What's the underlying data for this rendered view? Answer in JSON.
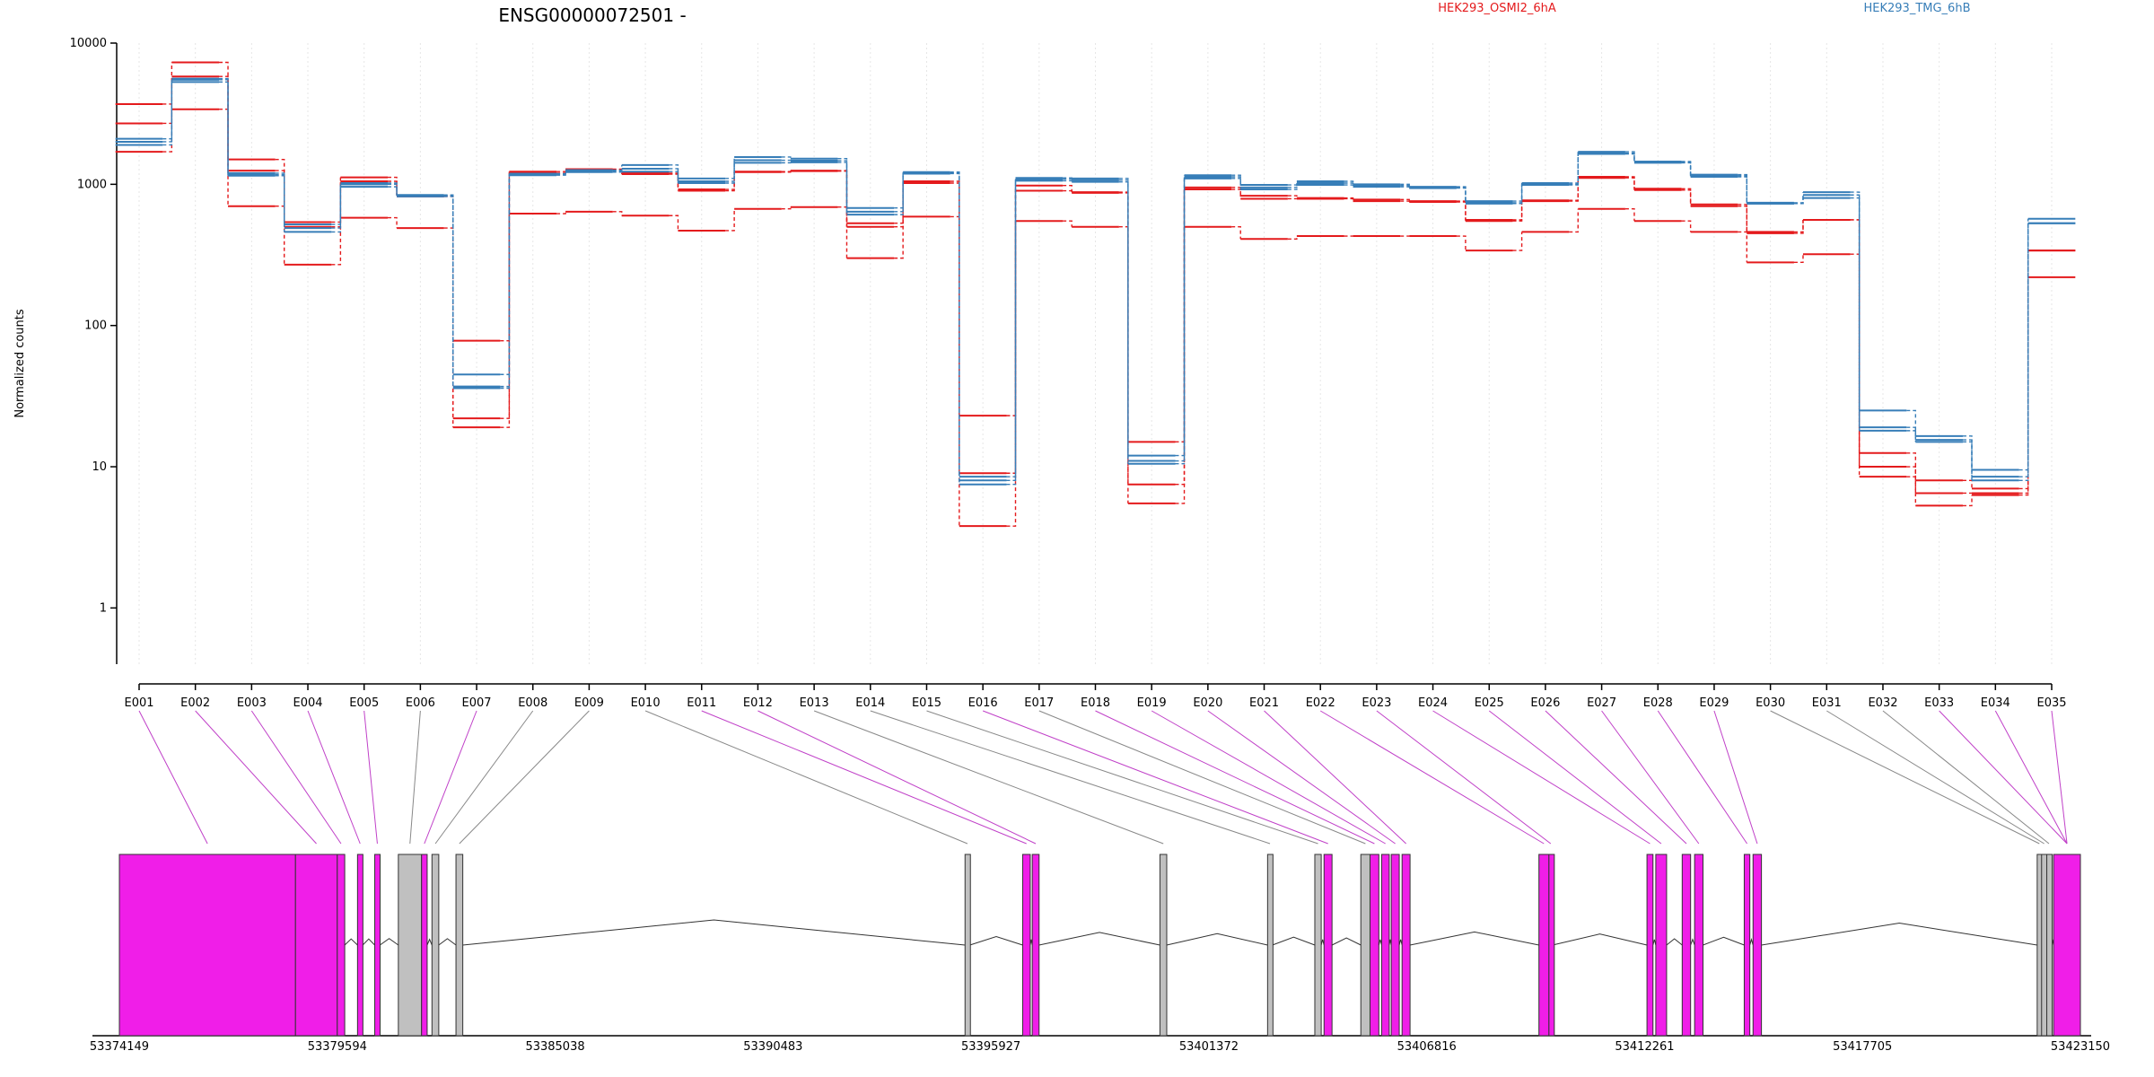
{
  "chart_data": {
    "type": "line",
    "title": "ENSG00000072501 -",
    "xlabel": "",
    "ylabel": "Normalized counts",
    "y_scale": "log",
    "ylim": [
      0.4,
      10000
    ],
    "yticks": [
      1,
      10,
      100,
      1000,
      10000
    ],
    "ytick_labels": [
      "1",
      "10",
      "100",
      "1000",
      "10000"
    ],
    "grid": "vertical dotted lines at exon positions",
    "legend": {
      "placement": "top-right",
      "entries": [
        {
          "name": "HEK293_OSMI2_6hA",
          "color": "#e41a1c"
        },
        {
          "name": "HEK293_TMG_6hB",
          "color": "#377eb8"
        }
      ]
    },
    "categories": [
      "E001",
      "E002",
      "E003",
      "E004",
      "E005",
      "E006",
      "E007",
      "E008",
      "E009",
      "E010",
      "E011",
      "E012",
      "E013",
      "E014",
      "E015",
      "E016",
      "E017",
      "E018",
      "E019",
      "E020",
      "E021",
      "E022",
      "E023",
      "E024",
      "E025",
      "E026",
      "E027",
      "E028",
      "E029",
      "E030",
      "E031",
      "E032",
      "E033",
      "E034",
      "E035"
    ],
    "series": [
      {
        "name": "HEK293_OSMI2_6hA",
        "color": "#e41a1c",
        "values": [
          3700,
          7300,
          1500,
          540,
          1120,
          830,
          78,
          1230,
          1280,
          1200,
          920,
          1230,
          1250,
          530,
          1050,
          23,
          980,
          880,
          15,
          950,
          830,
          800,
          780,
          760,
          560,
          770,
          1130,
          930,
          720,
          460,
          560,
          12.5,
          8,
          7,
          340
        ]
      },
      {
        "name": "HEK293_OSMI2_6hA",
        "color": "#e41a1c",
        "values": [
          2700,
          5800,
          1250,
          500,
          1050,
          820,
          22,
          1200,
          1270,
          1180,
          900,
          1220,
          1240,
          500,
          1020,
          9,
          900,
          870,
          7.5,
          920,
          790,
          790,
          760,
          750,
          550,
          760,
          1110,
          910,
          700,
          450,
          560,
          10,
          6.5,
          6.5,
          340
        ]
      },
      {
        "name": "HEK293_OSMI2_6hA",
        "color": "#e41a1c",
        "values": [
          1700,
          3400,
          700,
          270,
          580,
          490,
          19,
          620,
          640,
          600,
          470,
          670,
          690,
          300,
          590,
          3.8,
          550,
          500,
          5.5,
          500,
          410,
          430,
          430,
          430,
          340,
          460,
          670,
          550,
          460,
          280,
          320,
          8.5,
          5.3,
          6.3,
          220
        ]
      },
      {
        "name": "HEK293_TMG_6hB",
        "color": "#377eb8",
        "values": [
          2100,
          5600,
          1200,
          520,
          1020,
          840,
          45,
          1190,
          1260,
          1370,
          1100,
          1560,
          1520,
          680,
          1220,
          8.5,
          1110,
          1100,
          12,
          1160,
          990,
          1050,
          1000,
          960,
          760,
          1020,
          1700,
          1450,
          1170,
          740,
          880,
          25,
          16.5,
          9.5,
          570
        ]
      },
      {
        "name": "HEK293_TMG_6hB",
        "color": "#377eb8",
        "values": [
          2000,
          5500,
          1170,
          490,
          1000,
          830,
          37,
          1180,
          1240,
          1290,
          1050,
          1480,
          1470,
          640,
          1200,
          8,
          1090,
          1070,
          11,
          1130,
          950,
          1020,
          980,
          950,
          740,
          1000,
          1660,
          1430,
          1150,
          730,
          840,
          19,
          15.5,
          8.5,
          530
        ]
      },
      {
        "name": "HEK293_TMG_6hB",
        "color": "#377eb8",
        "values": [
          1900,
          5300,
          1150,
          460,
          960,
          820,
          36,
          1160,
          1220,
          1230,
          1020,
          1420,
          1430,
          610,
          1190,
          7.5,
          1060,
          1040,
          10.5,
          1100,
          920,
          990,
          960,
          940,
          730,
          990,
          1640,
          1420,
          1130,
          730,
          800,
          18,
          15,
          8,
          530
        ]
      }
    ],
    "gene_model": {
      "coordinate_labels": [
        "53374149",
        "53379594",
        "53385038",
        "53390483",
        "53395927",
        "53401372",
        "53406816",
        "53412261",
        "53417705",
        "53423150"
      ],
      "coordinate_range": [
        53374149,
        53423150
      ],
      "exons": [
        {
          "start": 53374149,
          "end": 53378550,
          "color": "#f01ee8",
          "sig": true
        },
        {
          "start": 53378550,
          "end": 53379594,
          "color": "#f01ee8",
          "sig": true
        },
        {
          "start": 53379594,
          "end": 53379780,
          "color": "#f01ee8",
          "sig": true
        },
        {
          "start": 53380100,
          "end": 53380230,
          "color": "#f01ee8",
          "sig": true
        },
        {
          "start": 53380530,
          "end": 53380660,
          "color": "#f01ee8",
          "sig": true
        },
        {
          "start": 53381120,
          "end": 53381700,
          "color": "#c0c0c0",
          "sig": false
        },
        {
          "start": 53381700,
          "end": 53381840,
          "color": "#f01ee8",
          "sig": true
        },
        {
          "start": 53381960,
          "end": 53382130,
          "color": "#c0c0c0",
          "sig": false
        },
        {
          "start": 53382560,
          "end": 53382730,
          "color": "#c0c0c0",
          "sig": false
        },
        {
          "start": 53395280,
          "end": 53395400,
          "color": "#c0c0c0",
          "sig": false
        },
        {
          "start": 53396720,
          "end": 53396910,
          "color": "#f01ee8",
          "sig": true
        },
        {
          "start": 53396960,
          "end": 53397130,
          "color": "#f01ee8",
          "sig": true
        },
        {
          "start": 53400150,
          "end": 53400320,
          "color": "#c0c0c0",
          "sig": false
        },
        {
          "start": 53402840,
          "end": 53402960,
          "color": "#c0c0c0",
          "sig": false
        },
        {
          "start": 53404020,
          "end": 53404180,
          "color": "#c0c0c0",
          "sig": false
        },
        {
          "start": 53404250,
          "end": 53404450,
          "color": "#f01ee8",
          "sig": true
        },
        {
          "start": 53405170,
          "end": 53405400,
          "color": "#c0c0c0",
          "sig": false
        },
        {
          "start": 53405400,
          "end": 53405620,
          "color": "#f01ee8",
          "sig": true
        },
        {
          "start": 53405690,
          "end": 53405880,
          "color": "#f01ee8",
          "sig": true
        },
        {
          "start": 53405930,
          "end": 53406130,
          "color": "#f01ee8",
          "sig": true
        },
        {
          "start": 53406200,
          "end": 53406400,
          "color": "#f01ee8",
          "sig": true
        },
        {
          "start": 53409620,
          "end": 53409870,
          "color": "#f01ee8",
          "sig": true
        },
        {
          "start": 53409870,
          "end": 53409960,
          "color": "#f01ee8",
          "sig": true
        },
        {
          "start": 53412320,
          "end": 53412470,
          "color": "#f01ee8",
          "sig": true
        },
        {
          "start": 53412540,
          "end": 53412810,
          "color": "#f01ee8",
          "sig": true
        },
        {
          "start": 53413200,
          "end": 53413410,
          "color": "#f01ee8",
          "sig": true
        },
        {
          "start": 53413510,
          "end": 53413720,
          "color": "#f01ee8",
          "sig": true
        },
        {
          "start": 53414750,
          "end": 53414890,
          "color": "#f01ee8",
          "sig": true
        },
        {
          "start": 53414970,
          "end": 53415180,
          "color": "#f01ee8",
          "sig": true
        },
        {
          "start": 53422070,
          "end": 53422180,
          "color": "#c0c0c0",
          "sig": false
        },
        {
          "start": 53422180,
          "end": 53422310,
          "color": "#c0c0c0",
          "sig": false
        },
        {
          "start": 53422310,
          "end": 53422420,
          "color": "#c0c0c0",
          "sig": false
        },
        {
          "start": 53422480,
          "end": 53423150,
          "color": "#f01ee8",
          "sig": true
        }
      ],
      "exon_links": [
        53379150,
        53380560,
        53380950,
        53381320,
        53381750,
        53382020,
        53382400,
        53382780,
        53391000,
        53391500,
        53392000,
        53392500,
        53393000,
        53393500,
        53394000,
        53394500,
        53395000,
        53395500,
        53396000,
        53396500,
        53397000,
        53397500,
        53398000,
        53398500,
        53399000,
        53399500,
        53400000,
        53400500,
        53401000,
        53401500,
        53402000,
        53402500,
        53403000,
        53403500,
        53404000
      ]
    }
  }
}
